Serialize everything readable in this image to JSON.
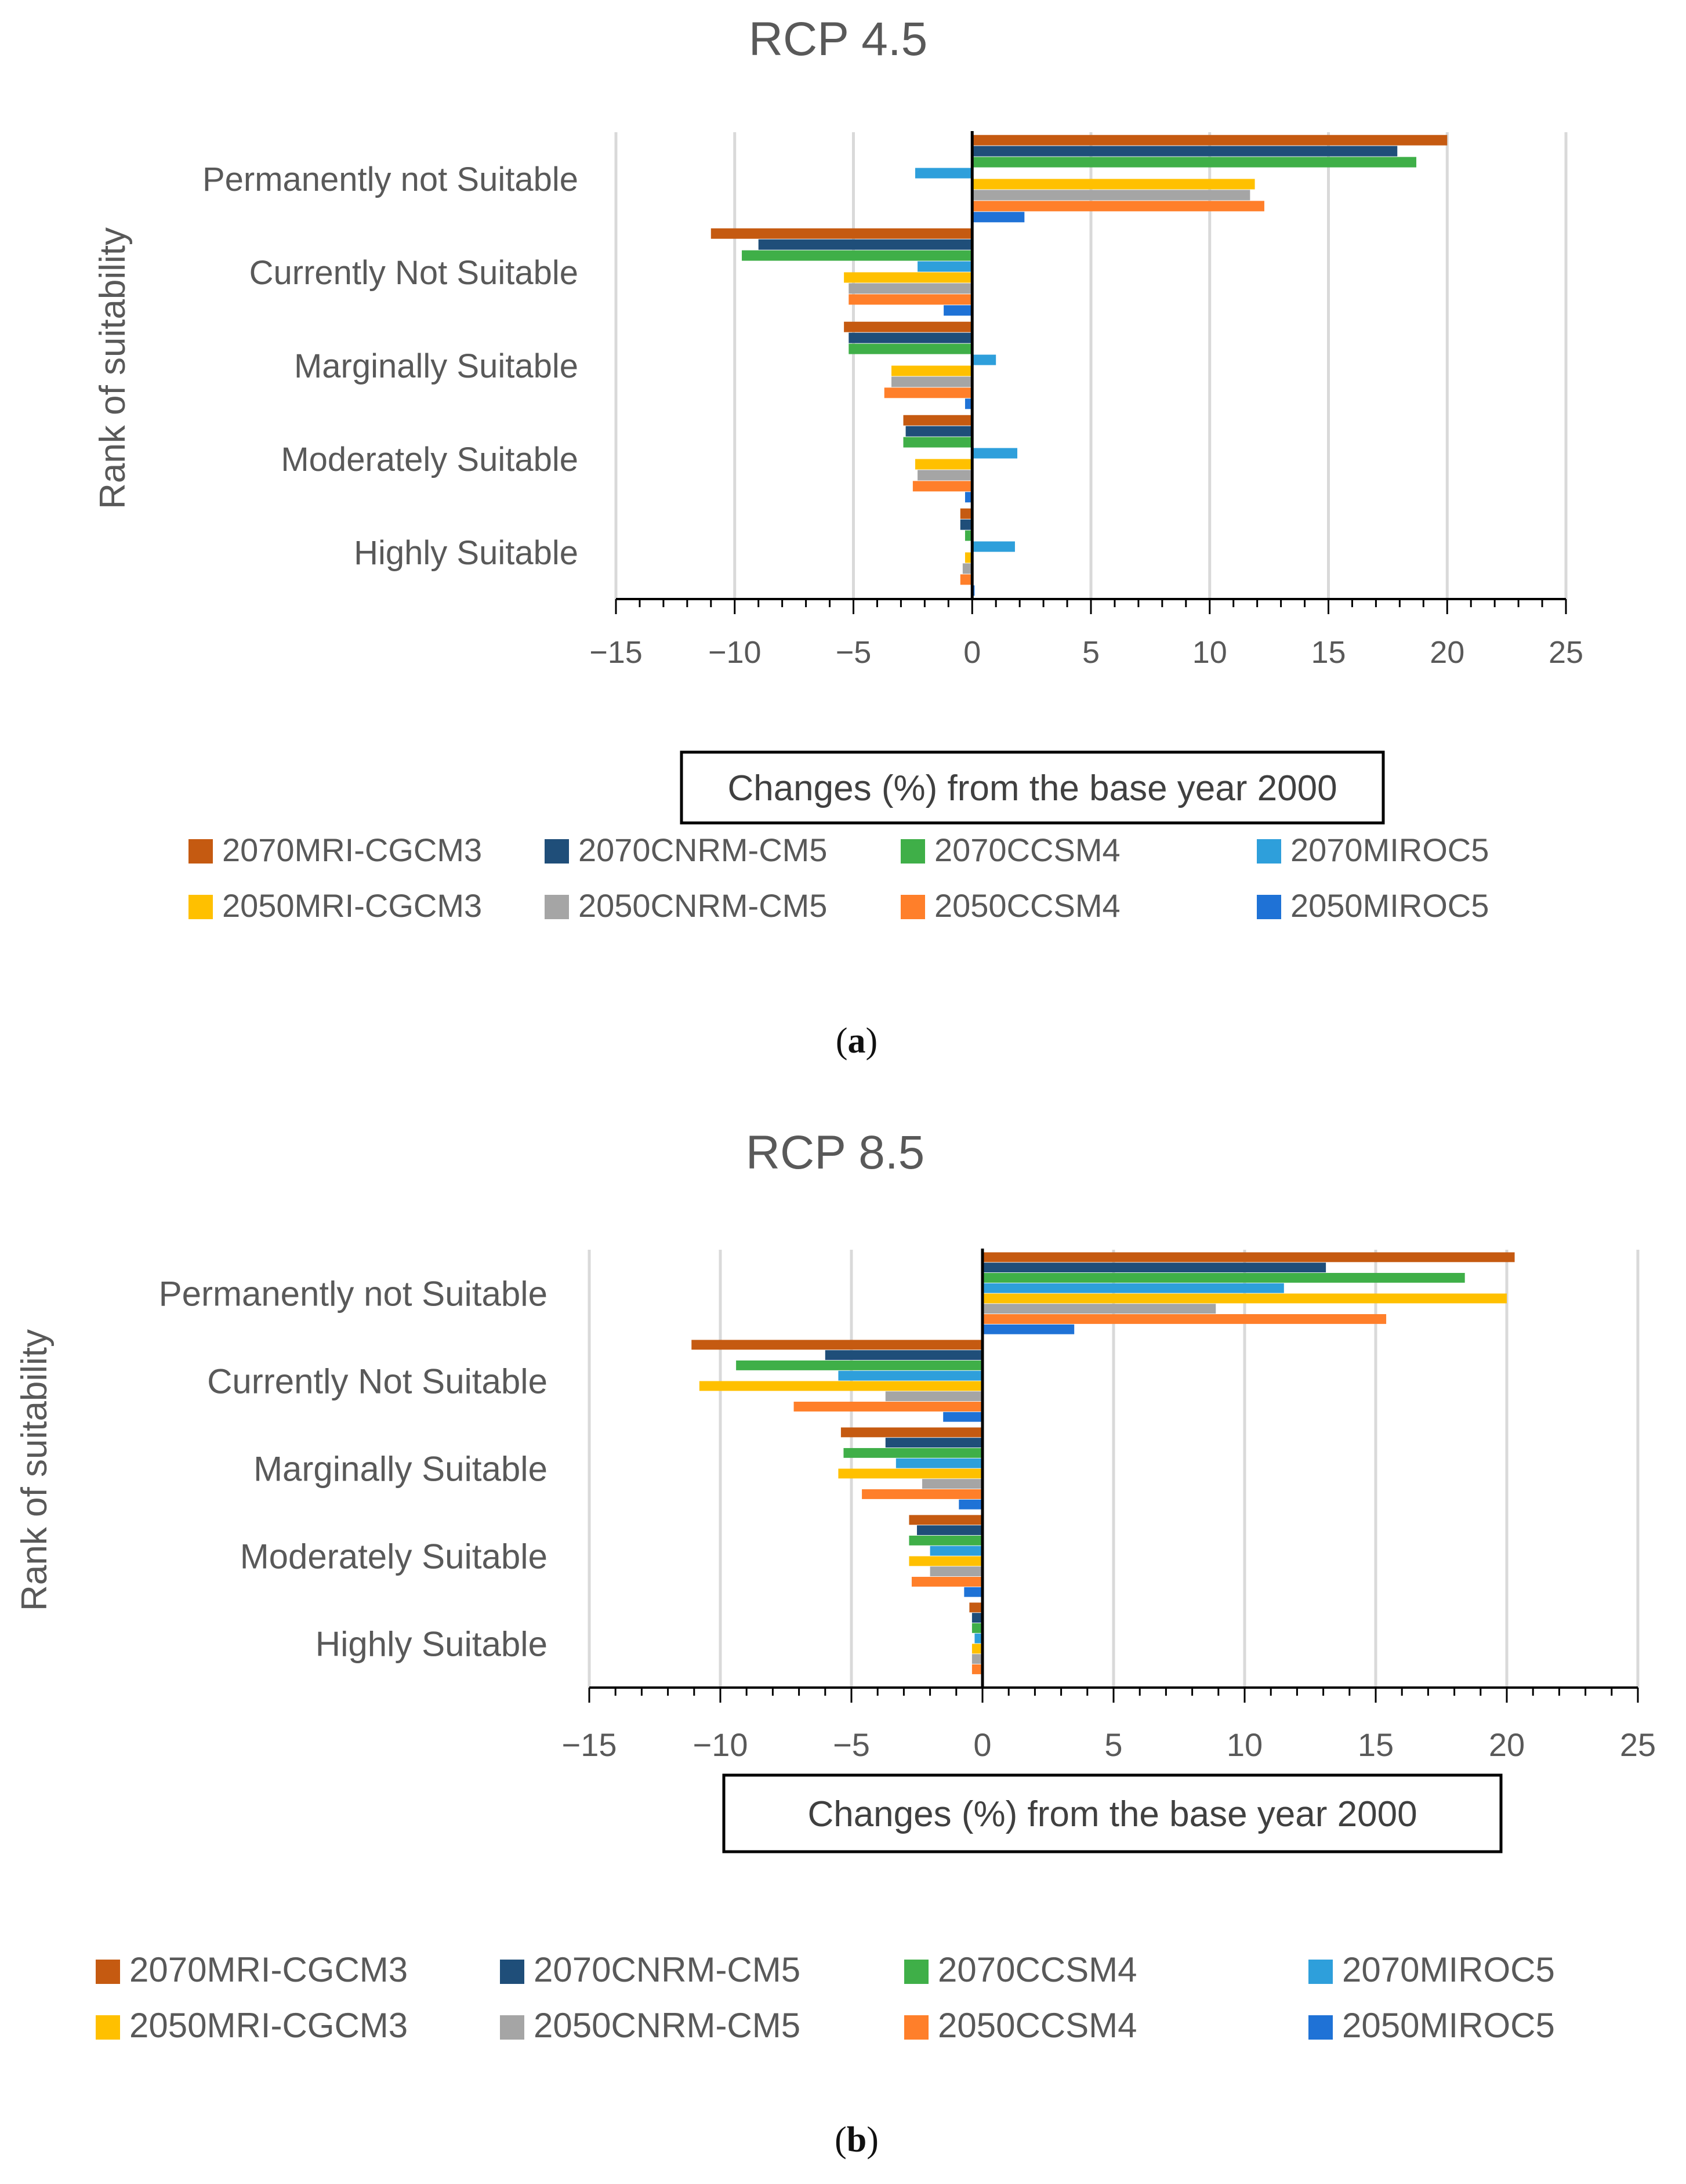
{
  "series": [
    {
      "name": "2070MRI-CGCM3",
      "color": "#C55A11"
    },
    {
      "name": "2070CNRM-CM5",
      "color": "#1F4E79"
    },
    {
      "name": "2070CCSM4",
      "color": "#3FAF48"
    },
    {
      "name": "2070MIROC5",
      "color": "#2E9FDB"
    },
    {
      "name": "2050MRI-CGCM3",
      "color": "#FFC000"
    },
    {
      "name": "2050CNRM-CM5",
      "color": "#A5A5A5"
    },
    {
      "name": "2050CCSM4",
      "color": "#FF7F2A"
    },
    {
      "name": "2050MIROC5",
      "color": "#1F72D6"
    }
  ],
  "captions": {
    "a": "a",
    "b": "b"
  },
  "chart_data": [
    {
      "type": "bar",
      "orientation": "horizontal",
      "title": "RCP 4.5",
      "xlabel": "Changes (%) from the base year 2000",
      "ylabel": "Rank of suitability",
      "xlim": [
        -15,
        25
      ],
      "xticks": [
        -15,
        -10,
        -5,
        0,
        5,
        10,
        15,
        20,
        25
      ],
      "xtick_labels": [
        "−15",
        "−10",
        "−5",
        "0",
        "5",
        "10",
        "15",
        "20",
        "25"
      ],
      "grid": true,
      "legend_position": "bottom",
      "categories": [
        "Permanently not Suitable",
        "Currently Not Suitable",
        "Marginally Suitable",
        "Moderately Suitable",
        "Highly Suitable"
      ],
      "series": [
        {
          "name": "2070MRI-CGCM3",
          "values": [
            20.0,
            -11.0,
            -5.4,
            -2.9,
            -0.5
          ]
        },
        {
          "name": "2070CNRM-CM5",
          "values": [
            17.9,
            -9.0,
            -5.2,
            -2.8,
            -0.5
          ]
        },
        {
          "name": "2070CCSM4",
          "values": [
            18.7,
            -9.7,
            -5.2,
            -2.9,
            -0.3
          ]
        },
        {
          "name": "2070MIROC5",
          "values": [
            -2.4,
            -2.3,
            1.0,
            1.9,
            1.8
          ]
        },
        {
          "name": "2050MRI-CGCM3",
          "values": [
            11.9,
            -5.4,
            -3.4,
            -2.4,
            -0.3
          ]
        },
        {
          "name": "2050CNRM-CM5",
          "values": [
            11.7,
            -5.2,
            -3.4,
            -2.3,
            -0.4
          ]
        },
        {
          "name": "2050CCSM4",
          "values": [
            12.3,
            -5.2,
            -3.7,
            -2.5,
            -0.5
          ]
        },
        {
          "name": "2050MIROC5",
          "values": [
            2.2,
            -1.2,
            -0.3,
            -0.3,
            0.1
          ]
        }
      ]
    },
    {
      "type": "bar",
      "orientation": "horizontal",
      "title": "RCP 8.5",
      "xlabel": "Changes (%) from the base year 2000",
      "ylabel": "Rank of suitability",
      "xlim": [
        -15,
        25
      ],
      "xticks": [
        -15,
        -10,
        -5,
        0,
        5,
        10,
        15,
        20,
        25
      ],
      "xtick_labels": [
        "−15",
        "−10",
        "−5",
        "0",
        "5",
        "10",
        "15",
        "20",
        "25"
      ],
      "grid": true,
      "legend_position": "bottom",
      "categories": [
        "Permanently not Suitable",
        "Currently Not Suitable",
        "Marginally Suitable",
        "Moderately Suitable",
        "Highly Suitable"
      ],
      "series": [
        {
          "name": "2070MRI-CGCM3",
          "values": [
            20.3,
            -11.1,
            -5.4,
            -2.8,
            -0.5
          ]
        },
        {
          "name": "2070CNRM-CM5",
          "values": [
            13.1,
            -6.0,
            -3.7,
            -2.5,
            -0.4
          ]
        },
        {
          "name": "2070CCSM4",
          "values": [
            18.4,
            -9.4,
            -5.3,
            -2.8,
            -0.4
          ]
        },
        {
          "name": "2070MIROC5",
          "values": [
            11.5,
            -5.5,
            -3.3,
            -2.0,
            -0.3
          ]
        },
        {
          "name": "2050MRI-CGCM3",
          "values": [
            20.0,
            -10.8,
            -5.5,
            -2.8,
            -0.4
          ]
        },
        {
          "name": "2050CNRM-CM5",
          "values": [
            8.9,
            -3.7,
            -2.3,
            -2.0,
            -0.4
          ]
        },
        {
          "name": "2050CCSM4",
          "values": [
            15.4,
            -7.2,
            -4.6,
            -2.7,
            -0.4
          ]
        },
        {
          "name": "2050MIROC5",
          "values": [
            3.5,
            -1.5,
            -0.9,
            -0.7,
            0.0
          ]
        }
      ]
    }
  ]
}
